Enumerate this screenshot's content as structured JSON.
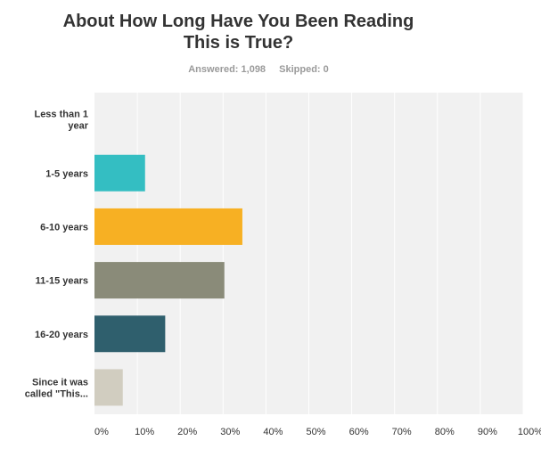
{
  "title_line1": "About How Long Have You Been Reading",
  "title_line2": "This is True?",
  "answered": "Answered: 1,098",
  "skipped": "Skipped: 0",
  "chart_data": {
    "type": "bar",
    "orientation": "horizontal",
    "categories": [
      [
        "Less than 1",
        "year"
      ],
      [
        "1-5 years"
      ],
      [
        "6-10 years"
      ],
      [
        "11-15 years"
      ],
      [
        "16-20 years"
      ],
      [
        "Since it was",
        "called \"This..."
      ]
    ],
    "values": [
      0,
      11.8,
      34.5,
      30.3,
      16.5,
      6.6
    ],
    "colors": [
      "#e7bc7a",
      "#34bec2",
      "#f7b023",
      "#8a8b79",
      "#2f5f6d",
      "#d1cdc0"
    ],
    "xlim": [
      0,
      100
    ],
    "xticks": [
      "0%",
      "10%",
      "20%",
      "30%",
      "40%",
      "50%",
      "60%",
      "70%",
      "80%",
      "90%",
      "100%"
    ],
    "grid": true
  }
}
